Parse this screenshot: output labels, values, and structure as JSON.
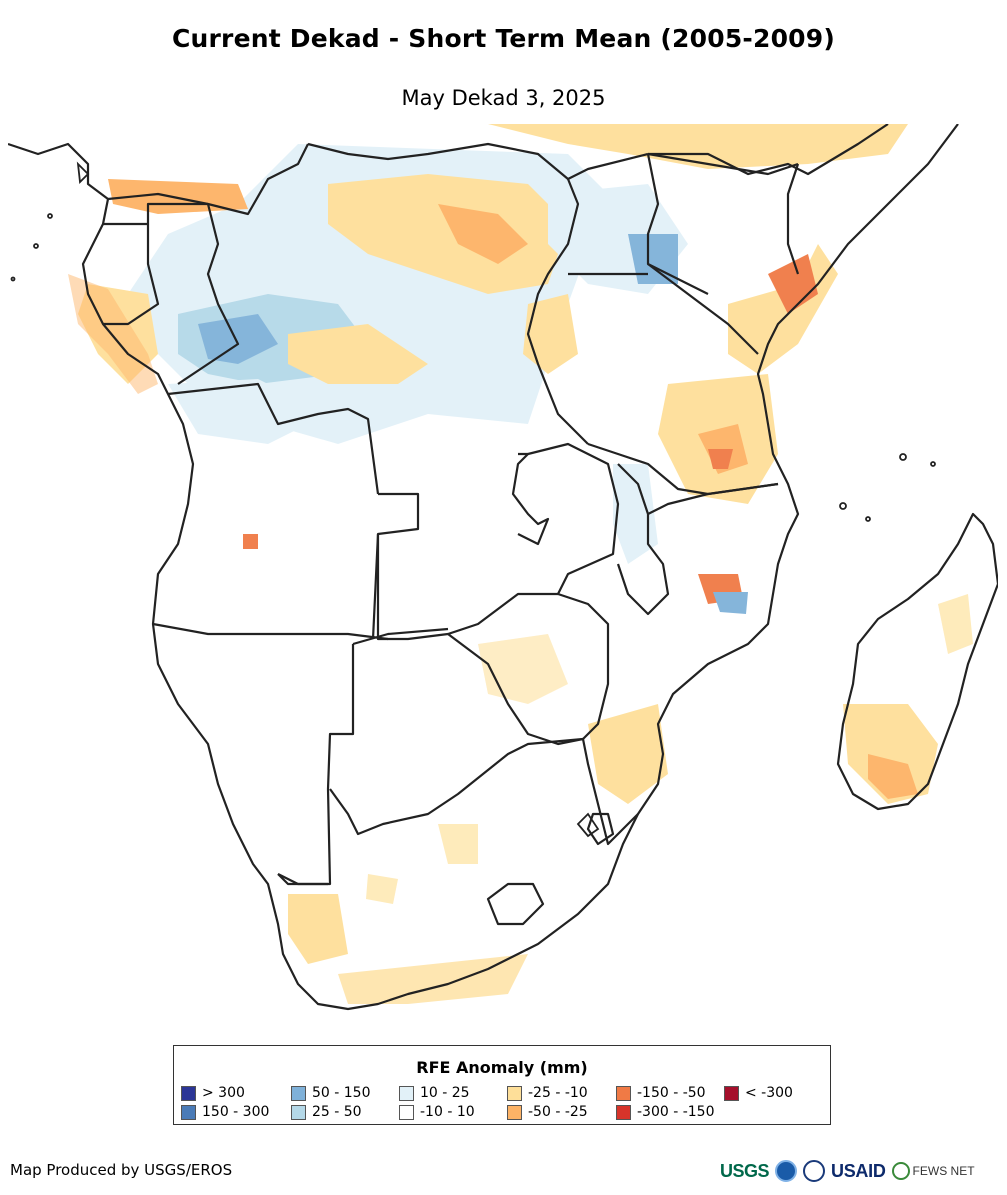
{
  "header": {
    "title": "Current Dekad - Short Term Mean (2005-2009)",
    "subtitle": "May Dekad 3, 2025"
  },
  "legend": {
    "title": "RFE Anomaly (mm)",
    "items": [
      {
        "label": "> 300",
        "color": "#2b3596"
      },
      {
        "label": "150 - 300",
        "color": "#4a7bb7"
      },
      {
        "label": "50 - 150",
        "color": "#7fb1d9"
      },
      {
        "label": "25 - 50",
        "color": "#b4d8e8"
      },
      {
        "label": "10 - 25",
        "color": "#e2f1f8"
      },
      {
        "label": "-10 - 10",
        "color": "#ffffff"
      },
      {
        "label": "-25 - -10",
        "color": "#fedf99"
      },
      {
        "label": "-50 - -25",
        "color": "#fdb366"
      },
      {
        "label": "-150 - -50",
        "color": "#f07a45"
      },
      {
        "label": "-300 - -150",
        "color": "#d7342a"
      },
      {
        "label": "< -300",
        "color": "#a50f2b"
      }
    ]
  },
  "footer": {
    "credit": "Map Produced by USGS/EROS",
    "logos": {
      "usgs": "USGS",
      "usaid": "USAID",
      "fews": "FEWS NET"
    }
  },
  "icons": [
    "usgs-logo",
    "noaa-logo",
    "seal-logo",
    "usaid-logo",
    "fews-net-logo"
  ]
}
